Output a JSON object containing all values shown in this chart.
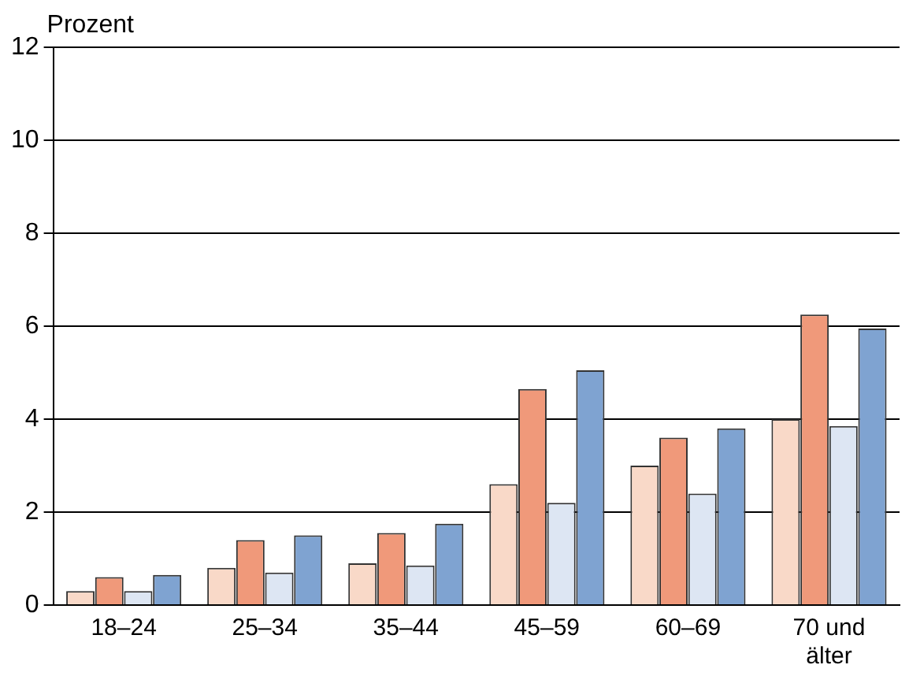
{
  "chart_data": {
    "type": "bar",
    "ylabel": "Prozent",
    "categories": [
      "18–24",
      "25–34",
      "35–44",
      "45–59",
      "60–69",
      "70 und älter"
    ],
    "series": [
      {
        "color": "#f9d9c8",
        "values": [
          0.3,
          0.8,
          0.9,
          2.6,
          3.0,
          4.0
        ]
      },
      {
        "color": "#f0997a",
        "values": [
          0.6,
          1.4,
          1.55,
          4.65,
          3.6,
          6.25
        ]
      },
      {
        "color": "#dde6f3",
        "values": [
          0.3,
          0.7,
          0.85,
          2.2,
          2.4,
          3.85
        ]
      },
      {
        "color": "#7fa3d1",
        "values": [
          0.65,
          1.5,
          1.75,
          5.05,
          3.8,
          5.95
        ]
      }
    ],
    "ylim": [
      0,
      12
    ],
    "yticks": [
      0,
      2,
      4,
      6,
      8,
      10,
      12
    ],
    "grid": "y"
  }
}
